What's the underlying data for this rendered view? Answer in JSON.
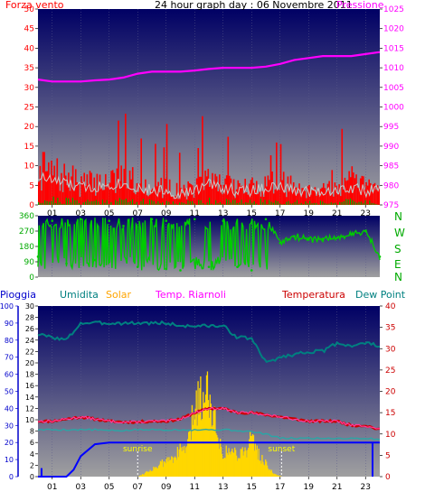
{
  "header": {
    "title": "24 hour graph day : 06 Novembre 2011",
    "wind_label": "Forza vento",
    "pressure_label": "Pressione"
  },
  "direction_labels": [
    "N",
    "W",
    "S",
    "E",
    "N"
  ],
  "bottom_legend": {
    "pioggia": "Pioggia",
    "umidita": "Umidita",
    "solar": "Solar",
    "temp_riarnoli": "Temp. Riarnoli",
    "temperatura": "Temperatura",
    "dew_point": "Dew Point"
  },
  "annotations": {
    "sunrise": "sunrise",
    "sunset": "sunset"
  },
  "colors": {
    "wind": "#ff0000",
    "gust": "#c8c8c8",
    "pressure": "#ff00ff",
    "direction": "#00cc00",
    "rain": "#0000ff",
    "humidity": "#008080",
    "solar": "#ffd700",
    "temp_riarnoli": "#ff00ff",
    "temperature": "#cc0000",
    "dew_point": "#008080",
    "sky_top": "#000064",
    "sky_bottom": "#a0a0a0"
  },
  "chart_data": [
    {
      "type": "line",
      "panel": "wind-pressure",
      "title": "24 hour graph day : 06 Novembre 2011",
      "x_ticks": [
        "01",
        "03",
        "05",
        "07",
        "09",
        "11",
        "13",
        "15",
        "17",
        "19",
        "21",
        "23"
      ],
      "xlim": [
        0,
        24
      ],
      "y_left": {
        "label": "Forza vento",
        "lim": [
          0,
          50
        ],
        "ticks": [
          0,
          5,
          10,
          15,
          20,
          25,
          30,
          35,
          40,
          45,
          50
        ]
      },
      "y_right": {
        "label": "Pressione",
        "lim": [
          975,
          1025
        ],
        "ticks": [
          975,
          980,
          985,
          990,
          995,
          1000,
          1005,
          1010,
          1015,
          1020,
          1025
        ]
      },
      "series": [
        {
          "name": "Forza vento",
          "axis": "left",
          "style": "bars",
          "x": [
            0,
            1,
            2,
            3,
            4,
            5,
            6,
            7,
            8,
            9,
            10,
            11,
            12,
            13,
            14,
            15,
            16,
            17,
            18,
            19,
            20,
            21,
            22,
            23,
            24
          ],
          "y": [
            8,
            7,
            6,
            5,
            5,
            6,
            6,
            5,
            4,
            4,
            3,
            4,
            6,
            5,
            4,
            4,
            5,
            5,
            4,
            4,
            4,
            4,
            5,
            4,
            4
          ]
        },
        {
          "name": "Pressione",
          "axis": "right",
          "x": [
            0,
            1,
            2,
            3,
            4,
            5,
            6,
            7,
            8,
            9,
            10,
            11,
            12,
            13,
            14,
            15,
            16,
            17,
            18,
            19,
            20,
            21,
            22,
            23,
            24
          ],
          "y": [
            1007,
            1006.5,
            1006.5,
            1006.5,
            1006.8,
            1007,
            1007.5,
            1008.5,
            1009,
            1009,
            1009,
            1009.3,
            1009.7,
            1010,
            1010,
            1010,
            1010.3,
            1011,
            1012,
            1012.5,
            1013,
            1013,
            1013,
            1013.5,
            1014
          ]
        }
      ]
    },
    {
      "type": "scatter",
      "panel": "wind-direction",
      "x_ticks": [
        "01",
        "03",
        "05",
        "07",
        "09",
        "11",
        "13",
        "15",
        "17",
        "19",
        "21",
        "23"
      ],
      "xlim": [
        0,
        24
      ],
      "y": {
        "lim": [
          0,
          360
        ],
        "ticks": [
          0,
          90,
          180,
          270,
          360
        ]
      },
      "series": [
        {
          "name": "direction",
          "x": [
            0,
            1,
            2,
            3,
            4,
            5,
            6,
            7,
            8,
            9,
            10,
            11,
            12,
            13,
            14,
            15,
            16,
            17,
            18,
            19,
            20,
            21,
            22,
            23,
            24
          ],
          "y": [
            120,
            330,
            80,
            340,
            100,
            330,
            300,
            60,
            340,
            330,
            40,
            340,
            60,
            330,
            60,
            40,
            340,
            200,
            240,
            220,
            225,
            230,
            250,
            270,
            120
          ]
        }
      ]
    },
    {
      "type": "line",
      "panel": "temperature-rain-solar",
      "x_ticks": [
        "01",
        "03",
        "05",
        "07",
        "09",
        "11",
        "13",
        "15",
        "17",
        "19",
        "21",
        "23"
      ],
      "xlim": [
        0,
        24
      ],
      "y_pioggia": {
        "label": "Pioggia",
        "lim": [
          0,
          100
        ],
        "ticks": [
          0,
          10,
          20,
          30,
          40,
          50,
          60,
          70,
          80,
          90,
          100
        ]
      },
      "y_umidita": {
        "label": "Umidita",
        "lim": [
          0,
          30
        ],
        "ticks": [
          0,
          2,
          4,
          6,
          8,
          10,
          12,
          14,
          16,
          18,
          20,
          22,
          24,
          26,
          28,
          30
        ]
      },
      "y_temp": {
        "label": "Temperatura",
        "lim": [
          0,
          40
        ],
        "ticks": [
          0,
          5,
          10,
          15,
          20,
          25,
          30,
          35,
          40
        ]
      },
      "sunrise_hour": 7.0,
      "sunset_hour": 17.1,
      "series": [
        {
          "name": "Umidita",
          "axis": "umidita",
          "x": [
            0,
            1,
            2,
            3,
            4,
            5,
            6,
            7,
            8,
            9,
            10,
            11,
            12,
            13,
            14,
            15,
            16,
            17,
            18,
            19,
            20,
            21,
            22,
            23,
            24
          ],
          "y": [
            25,
            24.5,
            24,
            27,
            27,
            27,
            27,
            27,
            27,
            27,
            26.5,
            26.5,
            26.5,
            26.5,
            24.5,
            24.3,
            20,
            21,
            21.5,
            22,
            22,
            23.5,
            23,
            23.5,
            23
          ]
        },
        {
          "name": "Temperatura",
          "axis": "temp",
          "x": [
            0,
            1,
            2,
            3,
            4,
            5,
            6,
            7,
            8,
            9,
            10,
            11,
            12,
            13,
            14,
            15,
            16,
            17,
            18,
            19,
            20,
            21,
            22,
            23,
            24
          ],
          "y": [
            13,
            13,
            13.5,
            14,
            13.5,
            13,
            12.8,
            12.8,
            13,
            13,
            13.5,
            15,
            16,
            16,
            15,
            15,
            14.5,
            14,
            13.5,
            13,
            13,
            13,
            12,
            12,
            11
          ]
        },
        {
          "name": "Dew Point",
          "axis": "temp",
          "x": [
            0,
            1,
            2,
            3,
            4,
            5,
            6,
            7,
            8,
            9,
            10,
            11,
            12,
            13,
            14,
            15,
            16,
            17,
            18,
            19,
            20,
            21,
            22,
            23,
            24
          ],
          "y": [
            11,
            11,
            11,
            11,
            11,
            10.8,
            10.8,
            11,
            11,
            11,
            11,
            11,
            11,
            11,
            10.8,
            10.5,
            10,
            9,
            9,
            9,
            9,
            9,
            9,
            9,
            8.7
          ]
        },
        {
          "name": "Pioggia",
          "axis": "pioggia",
          "x": [
            0,
            0.3,
            0.4,
            1,
            2,
            2.5,
            3,
            4,
            5,
            24
          ],
          "y": [
            0,
            0,
            0,
            0,
            0,
            4,
            12,
            19,
            20,
            20
          ]
        },
        {
          "name": "Solar",
          "axis": "umidita",
          "style": "bars",
          "x": [
            7,
            8,
            9,
            10,
            10.5,
            11,
            11.5,
            12,
            12.5,
            13,
            13.5,
            14,
            14.5,
            15,
            15.5,
            16,
            16.5,
            17.1
          ],
          "y": [
            0,
            1.5,
            3,
            5,
            6,
            14,
            16,
            17,
            9,
            4.5,
            5,
            4.5,
            5,
            7.5,
            4,
            2.5,
            0.5,
            0
          ]
        }
      ]
    }
  ]
}
